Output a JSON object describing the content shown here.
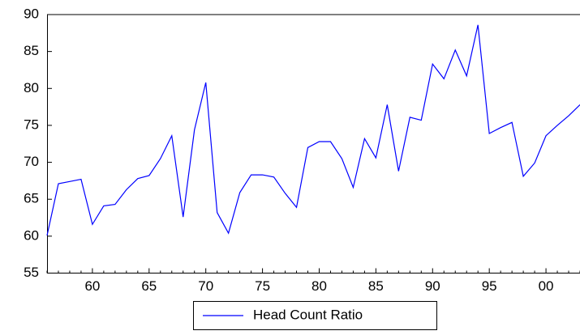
{
  "chart_data": {
    "type": "line",
    "categories": [
      null,
      null,
      null,
      null,
      "60",
      null,
      null,
      null,
      null,
      "65",
      null,
      null,
      null,
      null,
      "70",
      null,
      null,
      null,
      null,
      "75",
      null,
      null,
      null,
      null,
      "80",
      null,
      null,
      null,
      null,
      "85",
      null,
      null,
      null,
      null,
      "90",
      null,
      null,
      null,
      null,
      "95",
      null,
      null,
      null,
      null,
      "00",
      null,
      null,
      null
    ],
    "series": [
      {
        "name": "Head Count Ratio",
        "color": "#0000ff",
        "values": [
          60.1,
          67.1,
          67.4,
          67.7,
          61.6,
          64.1,
          64.3,
          66.3,
          67.8,
          68.2,
          70.5,
          73.6,
          62.6,
          74.4,
          80.8,
          63.2,
          60.4,
          65.9,
          68.3,
          68.3,
          68.0,
          65.8,
          63.9,
          72.0,
          72.8,
          72.8,
          70.5,
          66.6,
          73.2,
          70.6,
          77.8,
          68.8,
          76.1,
          75.7,
          83.3,
          81.3,
          85.2,
          81.7,
          88.6,
          73.9,
          74.7,
          75.4,
          68.1,
          69.9,
          73.6,
          75.0,
          76.3,
          77.8
        ]
      }
    ],
    "ylim": [
      55,
      90
    ],
    "yticks": [
      55,
      60,
      65,
      70,
      75,
      80,
      85,
      90
    ],
    "legend": "bottom"
  }
}
